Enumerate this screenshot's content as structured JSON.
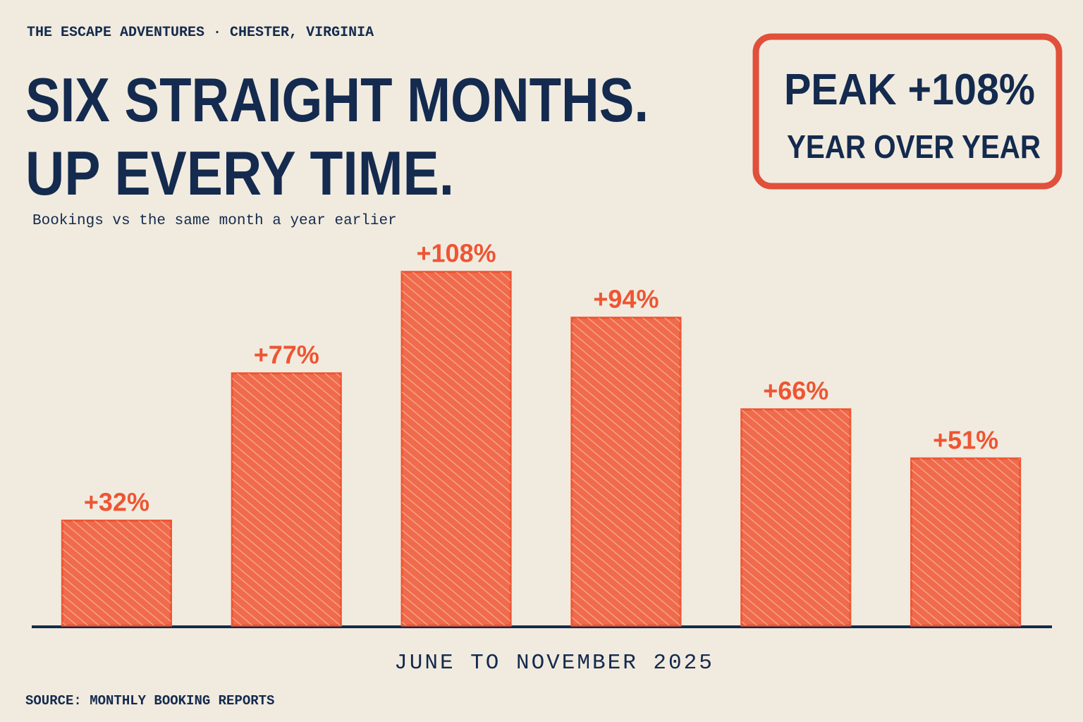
{
  "chart_data": {
    "type": "bar",
    "kicker": "THE ESCAPE ADVENTURES · CHESTER, VIRGINIA",
    "title": [
      "SIX STRAIGHT MONTHS.",
      "UP EVERY TIME."
    ],
    "subtitle": "Bookings vs the same month a year earlier",
    "stamp": [
      "PEAK +108%",
      "YEAR OVER YEAR"
    ],
    "categories": [
      null,
      null,
      null,
      null,
      null,
      null
    ],
    "values": [
      32,
      77,
      108,
      94,
      66,
      51
    ],
    "value_labels": [
      "+32%",
      "+77%",
      "+108%",
      "+94%",
      "+66%",
      "+51%"
    ],
    "color": "#ee5533",
    "ylim": [
      0,
      120
    ],
    "xlabel": "JUNE TO NOVEMBER 2025",
    "source": "SOURCE: MONTHLY BOOKING REPORTS"
  }
}
